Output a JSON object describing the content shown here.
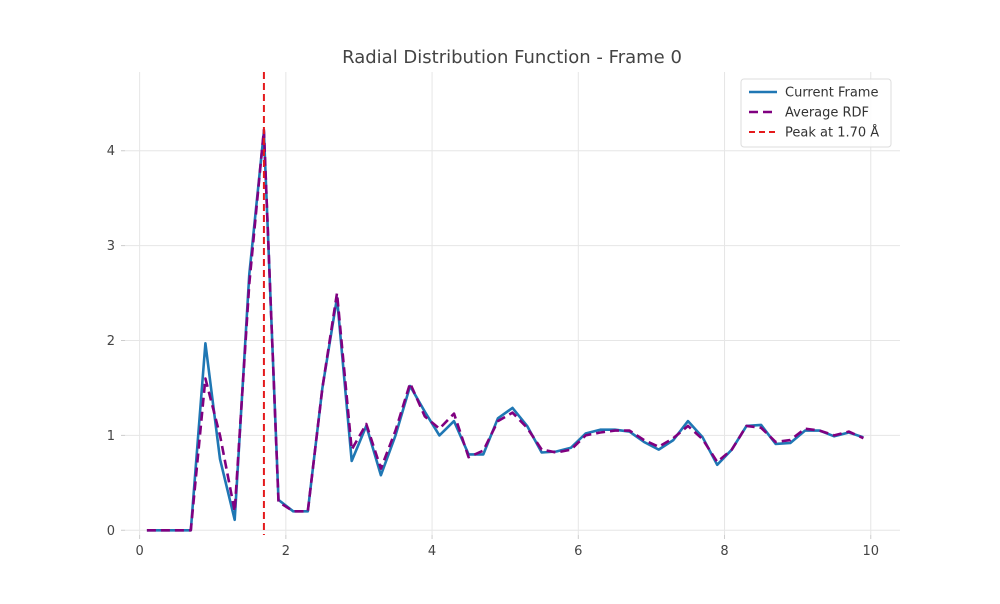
{
  "chart_data": {
    "type": "line",
    "title": "Radial Distribution Function - Frame 0",
    "xlabel": "",
    "ylabel": "",
    "xlim": [
      -0.2,
      10.4
    ],
    "ylim": [
      -0.05,
      4.83
    ],
    "xticks": [
      0,
      2,
      4,
      6,
      8,
      10
    ],
    "yticks": [
      0,
      1,
      2,
      3,
      4
    ],
    "grid": true,
    "legend_position": "top-right",
    "x": [
      0.1,
      0.3,
      0.5,
      0.7,
      0.9,
      1.1,
      1.3,
      1.5,
      1.7,
      1.9,
      2.1,
      2.3,
      2.5,
      2.7,
      2.9,
      3.1,
      3.3,
      3.5,
      3.7,
      3.9,
      4.1,
      4.3,
      4.5,
      4.7,
      4.9,
      5.1,
      5.3,
      5.5,
      5.7,
      5.9,
      6.1,
      6.3,
      6.5,
      6.7,
      6.9,
      7.1,
      7.3,
      7.5,
      7.7,
      7.9,
      8.1,
      8.3,
      8.5,
      8.7,
      8.9,
      9.1,
      9.3,
      9.5,
      9.7,
      9.9
    ],
    "series": [
      {
        "name": "Current Frame",
        "color": "#1f77b4",
        "style": "solid",
        "values": [
          0,
          0,
          0,
          0,
          1.97,
          0.75,
          0.11,
          2.7,
          4.2,
          0.32,
          0.2,
          0.2,
          1.5,
          2.45,
          0.73,
          1.1,
          0.58,
          1.0,
          1.52,
          1.25,
          1.0,
          1.15,
          0.8,
          0.8,
          1.18,
          1.29,
          1.1,
          0.82,
          0.83,
          0.87,
          1.02,
          1.06,
          1.06,
          1.04,
          0.93,
          0.85,
          0.95,
          1.15,
          0.98,
          0.69,
          0.85,
          1.1,
          1.11,
          0.91,
          0.92,
          1.05,
          1.05,
          0.99,
          1.03,
          0.98
        ]
      },
      {
        "name": "Average RDF",
        "color": "#800080",
        "style": "dashed",
        "values": [
          0,
          0,
          0,
          0,
          1.6,
          1.0,
          0.2,
          2.6,
          4.22,
          0.3,
          0.2,
          0.2,
          1.5,
          2.5,
          0.85,
          1.12,
          0.65,
          1.05,
          1.55,
          1.2,
          1.07,
          1.23,
          0.77,
          0.84,
          1.15,
          1.24,
          1.08,
          0.85,
          0.82,
          0.85,
          1.0,
          1.03,
          1.05,
          1.05,
          0.95,
          0.88,
          0.97,
          1.1,
          0.96,
          0.72,
          0.85,
          1.1,
          1.08,
          0.93,
          0.95,
          1.07,
          1.05,
          1.0,
          1.04,
          0.97
        ]
      }
    ],
    "vline": {
      "name": "Peak at 1.70 Å",
      "x": 1.7,
      "color": "#e41a1c",
      "style": "dashed"
    }
  }
}
